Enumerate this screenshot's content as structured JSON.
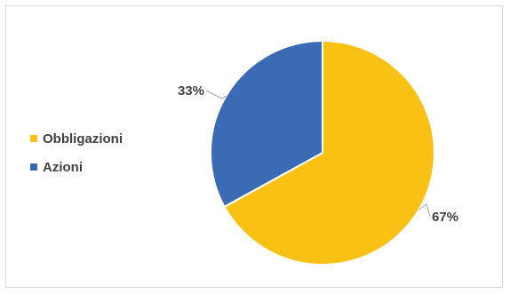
{
  "chart_data": {
    "type": "pie",
    "title": "",
    "slices": [
      {
        "name": "Obbligazioni",
        "value": 67,
        "label": "67%",
        "color": "#F9C114"
      },
      {
        "name": "Azioni",
        "value": 33,
        "label": "33%",
        "color": "#3C6BB5"
      }
    ],
    "legend_position": "left",
    "start_angle": "12 o'clock",
    "direction": "clockwise"
  }
}
